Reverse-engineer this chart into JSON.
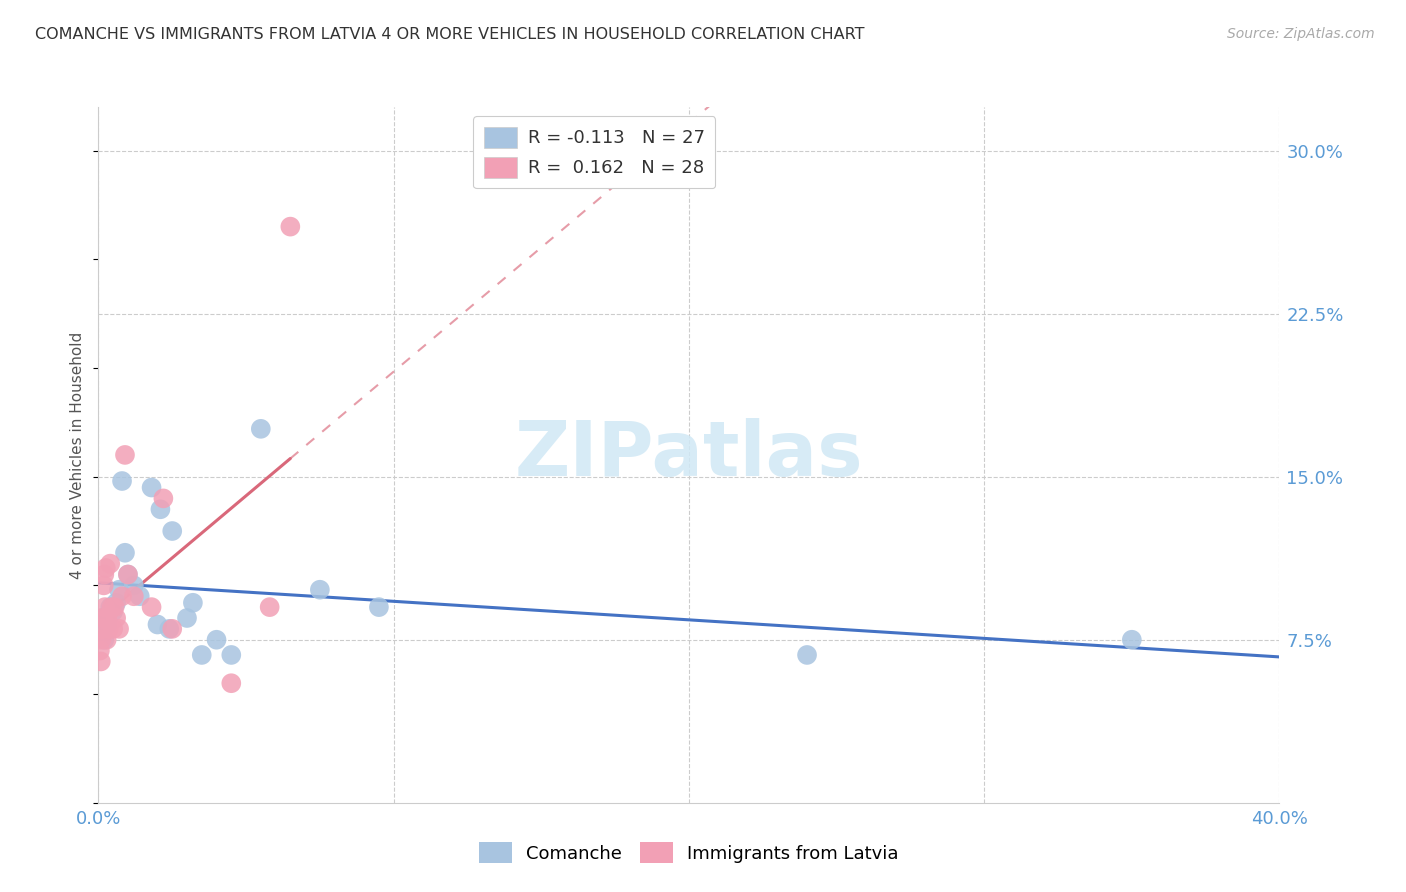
{
  "title": "COMANCHE VS IMMIGRANTS FROM LATVIA 4 OR MORE VEHICLES IN HOUSEHOLD CORRELATION CHART",
  "source": "Source: ZipAtlas.com",
  "ylabel": "4 or more Vehicles in Household",
  "ytick_labels": [
    "7.5%",
    "15.0%",
    "22.5%",
    "30.0%"
  ],
  "ytick_values": [
    7.5,
    15.0,
    22.5,
    30.0
  ],
  "xlim": [
    0.0,
    40.0
  ],
  "ylim": [
    0.0,
    32.0
  ],
  "legend1_r": "-0.113",
  "legend1_n": "27",
  "legend2_r": "0.162",
  "legend2_n": "28",
  "comanche_color": "#a8c4e0",
  "latvia_color": "#f2a0b5",
  "comanche_line_color": "#4472c4",
  "latvia_line_color": "#d9687a",
  "watermark_color": "#d0e8f5",
  "comanche_x": [
    0.1,
    0.2,
    0.3,
    0.4,
    0.5,
    0.6,
    0.7,
    0.8,
    0.9,
    1.0,
    1.2,
    1.4,
    1.8,
    2.0,
    2.1,
    2.4,
    2.5,
    3.0,
    3.2,
    3.5,
    4.0,
    4.5,
    5.5,
    7.5,
    9.5,
    24.0,
    35.0
  ],
  "comanche_y": [
    8.5,
    7.5,
    8.2,
    9.0,
    8.8,
    9.2,
    9.8,
    14.8,
    11.5,
    10.5,
    10.0,
    9.5,
    14.5,
    8.2,
    13.5,
    8.0,
    12.5,
    8.5,
    9.2,
    6.8,
    7.5,
    6.8,
    17.2,
    9.8,
    9.0,
    6.8,
    7.5
  ],
  "latvia_x": [
    0.05,
    0.08,
    0.1,
    0.12,
    0.15,
    0.18,
    0.2,
    0.22,
    0.25,
    0.28,
    0.3,
    0.35,
    0.4,
    0.45,
    0.5,
    0.55,
    0.6,
    0.7,
    0.8,
    0.9,
    1.0,
    1.2,
    1.8,
    2.2,
    2.5,
    4.5,
    5.8,
    6.5
  ],
  "latvia_y": [
    7.0,
    6.5,
    7.5,
    8.0,
    8.5,
    10.0,
    10.5,
    9.0,
    10.8,
    7.5,
    8.5,
    8.0,
    11.0,
    9.0,
    8.0,
    9.0,
    8.5,
    8.0,
    9.5,
    16.0,
    10.5,
    9.5,
    9.0,
    14.0,
    8.0,
    5.5,
    9.0,
    26.5
  ],
  "comanche_reg": [
    9.8,
    7.2
  ],
  "latvia_reg_solid_end": 5.5,
  "latvia_reg": [
    7.5,
    18.0
  ]
}
